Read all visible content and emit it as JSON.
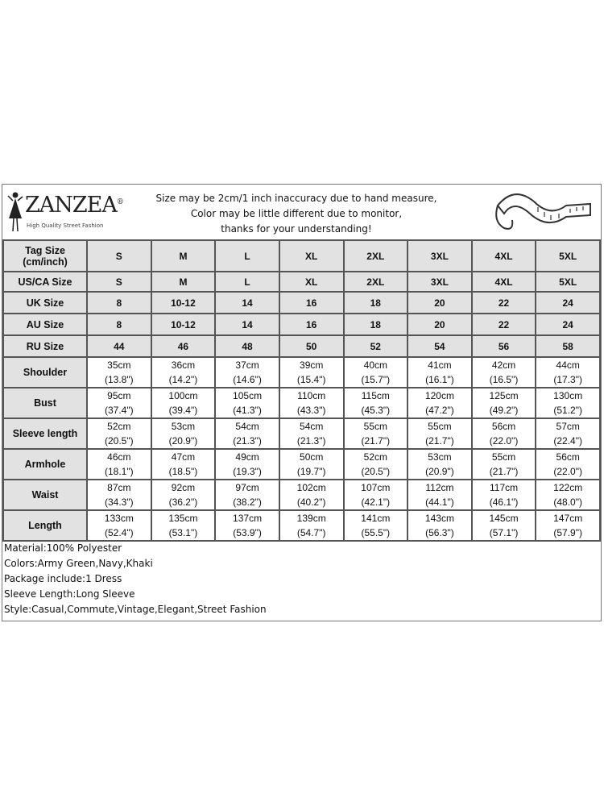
{
  "brand": {
    "name": "ZANZEA",
    "registered": "®",
    "tagline": "High Quality Street Fashion"
  },
  "notice": [
    "Size may be 2cm/1 inch inaccuracy due to hand measure,",
    "Color may be little different due to monitor,",
    "thanks for your understanding!"
  ],
  "size_rows": [
    {
      "label": "Tag Size (cm/inch)",
      "values": [
        "S",
        "M",
        "L",
        "XL",
        "2XL",
        "3XL",
        "4XL",
        "5XL"
      ]
    },
    {
      "label": "US/CA Size",
      "values": [
        "S",
        "M",
        "L",
        "XL",
        "2XL",
        "3XL",
        "4XL",
        "5XL"
      ]
    },
    {
      "label": "UK Size",
      "values": [
        "8",
        "10-12",
        "14",
        "16",
        "18",
        "20",
        "22",
        "24"
      ]
    },
    {
      "label": "AU Size",
      "values": [
        "8",
        "10-12",
        "14",
        "16",
        "18",
        "20",
        "22",
        "24"
      ]
    },
    {
      "label": "RU Size",
      "values": [
        "44",
        "46",
        "48",
        "50",
        "52",
        "54",
        "56",
        "58"
      ]
    }
  ],
  "measure_rows": [
    {
      "label": "Shoulder",
      "cm": [
        "35cm",
        "36cm",
        "37cm",
        "39cm",
        "40cm",
        "41cm",
        "42cm",
        "44cm"
      ],
      "inch": [
        "(13.8\")",
        "(14.2\")",
        "(14.6\")",
        "(15.4\")",
        "(15.7\")",
        "(16.1\")",
        "(16.5\")",
        "(17.3\")"
      ]
    },
    {
      "label": "Bust",
      "cm": [
        "95cm",
        "100cm",
        "105cm",
        "110cm",
        "115cm",
        "120cm",
        "125cm",
        "130cm"
      ],
      "inch": [
        "(37.4\")",
        "(39.4\")",
        "(41.3\")",
        "(43.3\")",
        "(45.3\")",
        "(47.2\")",
        "(49.2\")",
        "(51.2\")"
      ]
    },
    {
      "label": "Sleeve length",
      "cm": [
        "52cm",
        "53cm",
        "54cm",
        "54cm",
        "55cm",
        "55cm",
        "56cm",
        "57cm"
      ],
      "inch": [
        "(20.5\")",
        "(20.9\")",
        "(21.3\")",
        "(21.3\")",
        "(21.7\")",
        "(21.7\")",
        "(22.0\")",
        "(22.4\")"
      ]
    },
    {
      "label": "Armhole",
      "cm": [
        "46cm",
        "47cm",
        "49cm",
        "50cm",
        "52cm",
        "53cm",
        "55cm",
        "56cm"
      ],
      "inch": [
        "(18.1\")",
        "(18.5\")",
        "(19.3\")",
        "(19.7\")",
        "(20.5\")",
        "(20.9\")",
        "(21.7\")",
        "(22.0\")"
      ]
    },
    {
      "label": "Waist",
      "cm": [
        "87cm",
        "92cm",
        "97cm",
        "102cm",
        "107cm",
        "112cm",
        "117cm",
        "122cm"
      ],
      "inch": [
        "(34.3\")",
        "(36.2\")",
        "(38.2\")",
        "(40.2\")",
        "(42.1\")",
        "(44.1\")",
        "(46.1\")",
        "(48.0\")"
      ]
    },
    {
      "label": "Length",
      "cm": [
        "133cm",
        "135cm",
        "137cm",
        "139cm",
        "141cm",
        "143cm",
        "145cm",
        "147cm"
      ],
      "inch": [
        "(52.4\")",
        "(53.1\")",
        "(53.9\")",
        "(54.7\")",
        "(55.5\")",
        "(56.3\")",
        "(57.1\")",
        "(57.9\")"
      ]
    }
  ],
  "notes": [
    "Material:100% Polyester",
    "Colors:Army Green,Navy,Khaki",
    "Package include:1 Dress",
    "Sleeve Length:Long Sleeve",
    "Style:Casual,Commute,Vintage,Elegant,Street Fashion"
  ]
}
